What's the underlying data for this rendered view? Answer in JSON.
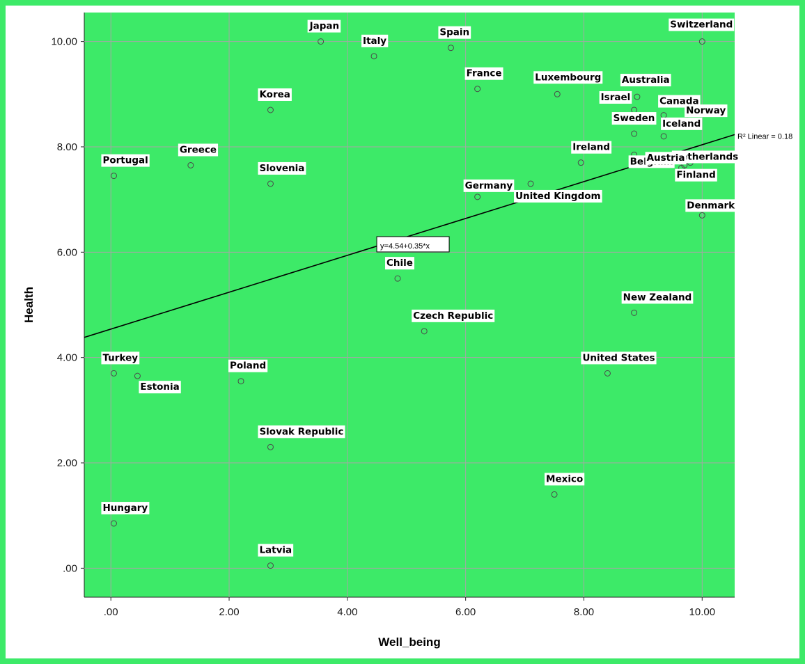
{
  "chart_data": {
    "type": "scatter",
    "xlabel": "Well_being",
    "ylabel": "Health",
    "xlim": [
      -0.45,
      10.55
    ],
    "ylim": [
      -0.55,
      10.55
    ],
    "x_ticks": [
      0,
      2,
      4,
      6,
      8,
      10
    ],
    "y_ticks": [
      0,
      2,
      4,
      6,
      8,
      10
    ],
    "x_tick_labels": [
      ".00",
      "2.00",
      "4.00",
      "6.00",
      "8.00",
      "10.00"
    ],
    "y_tick_labels": [
      ".00",
      "2.00",
      "4.00",
      "6.00",
      "8.00",
      "10.00"
    ],
    "grid": true,
    "fit_line": {
      "intercept": 4.54,
      "slope": 0.35,
      "equation_label": "y=4.54+0.35*x",
      "r2_label": "R² Linear = 0.18"
    },
    "points": [
      {
        "label": "Japan",
        "x": 3.55,
        "y": 10.0
      },
      {
        "label": "Italy",
        "x": 4.45,
        "y": 9.72
      },
      {
        "label": "Spain",
        "x": 5.75,
        "y": 9.88
      },
      {
        "label": "Switzerland",
        "x": 10.0,
        "y": 10.0
      },
      {
        "label": "France",
        "x": 6.2,
        "y": 9.1
      },
      {
        "label": "Luxembourg",
        "x": 7.55,
        "y": 9.0
      },
      {
        "label": "Australia",
        "x": 8.9,
        "y": 8.95
      },
      {
        "label": "Israel",
        "x": 8.85,
        "y": 8.7
      },
      {
        "label": "Canada",
        "x": 9.35,
        "y": 8.6
      },
      {
        "label": "Norway",
        "x": 9.75,
        "y": 8.5
      },
      {
        "label": "Korea",
        "x": 2.7,
        "y": 8.7
      },
      {
        "label": "Sweden",
        "x": 8.85,
        "y": 8.25
      },
      {
        "label": "Iceland",
        "x": 9.35,
        "y": 8.2
      },
      {
        "label": "Greece",
        "x": 1.35,
        "y": 7.65
      },
      {
        "label": "Portugal",
        "x": 0.05,
        "y": 7.45
      },
      {
        "label": "Ireland",
        "x": 7.95,
        "y": 7.7
      },
      {
        "label": "Netherlands",
        "x": 9.7,
        "y": 7.65
      },
      {
        "label": "Slovenia",
        "x": 2.7,
        "y": 7.3
      },
      {
        "label": "Belgium",
        "x": 8.85,
        "y": 7.85
      },
      {
        "label": "Austria",
        "x": 9.65,
        "y": 7.6
      },
      {
        "label": "Germany",
        "x": 6.2,
        "y": 7.05
      },
      {
        "label": "United Kingdom",
        "x": 7.1,
        "y": 7.3
      },
      {
        "label": "Finland",
        "x": 9.8,
        "y": 7.7
      },
      {
        "label": "Denmark",
        "x": 10.0,
        "y": 6.7
      },
      {
        "label": "Chile",
        "x": 4.85,
        "y": 5.5
      },
      {
        "label": "New Zealand",
        "x": 8.85,
        "y": 4.85
      },
      {
        "label": "Czech Republic",
        "x": 5.3,
        "y": 4.5
      },
      {
        "label": "Turkey",
        "x": 0.05,
        "y": 3.7
      },
      {
        "label": "Estonia",
        "x": 0.45,
        "y": 3.65
      },
      {
        "label": "Poland",
        "x": 2.2,
        "y": 3.55
      },
      {
        "label": "United States",
        "x": 8.4,
        "y": 3.7
      },
      {
        "label": "Slovak Republic",
        "x": 2.7,
        "y": 2.3
      },
      {
        "label": "Mexico",
        "x": 7.5,
        "y": 1.4
      },
      {
        "label": "Hungary",
        "x": 0.05,
        "y": 0.85
      },
      {
        "label": "Latvia",
        "x": 2.7,
        "y": 0.05
      }
    ]
  }
}
